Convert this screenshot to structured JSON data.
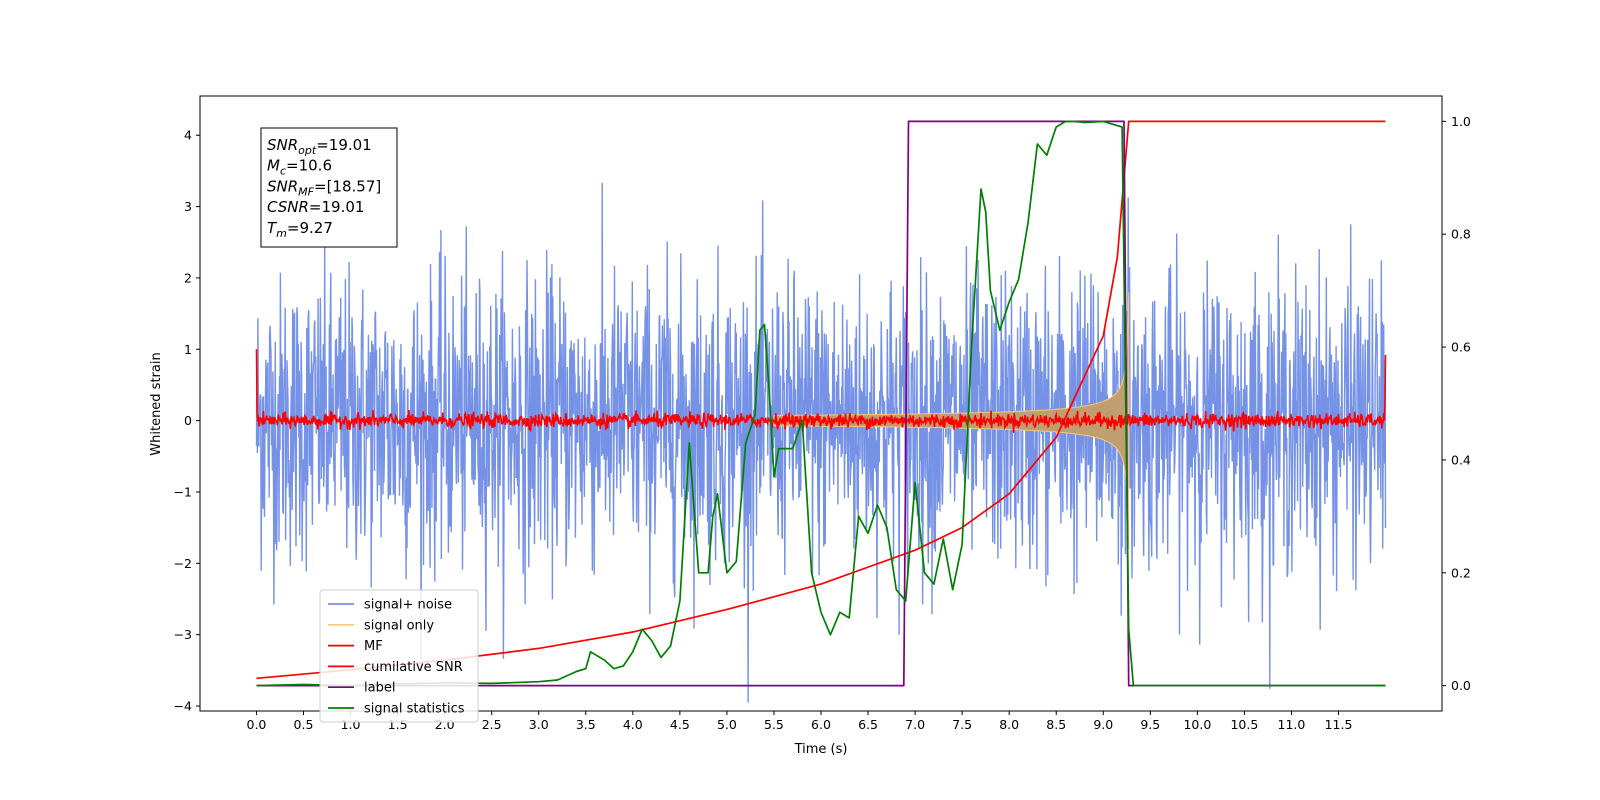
{
  "chart_data": {
    "type": "line",
    "xlabel": "Time (s)",
    "ylabel": "Whitened strain",
    "xlim": [
      -0.6,
      12.6
    ],
    "ylim": [
      -4.07,
      4.55
    ],
    "y2lim": [
      -0.045,
      1.045
    ],
    "grid": false,
    "legend_position": "lower-left",
    "x_ticks": [
      "0.0",
      "0.5",
      "1.0",
      "1.5",
      "2.0",
      "2.5",
      "3.0",
      "3.5",
      "4.0",
      "4.5",
      "5.0",
      "5.5",
      "6.0",
      "6.5",
      "7.0",
      "7.5",
      "8.0",
      "8.5",
      "9.0",
      "9.5",
      "10.0",
      "10.5",
      "11.0",
      "11.5"
    ],
    "y_ticks": [
      "−4",
      "−3",
      "−2",
      "−1",
      "0",
      "1",
      "2",
      "3",
      "4"
    ],
    "y2_ticks": [
      "0.0",
      "0.2",
      "0.4",
      "0.6",
      "0.8",
      "1.0"
    ],
    "info_box": [
      {
        "base": "SNR",
        "sub": "opt",
        "value": "=19.01"
      },
      {
        "base": "M",
        "sub": "c",
        "value": "=10.6"
      },
      {
        "base": "SNR",
        "sub": "MF",
        "value": "=[18.57]"
      },
      {
        "base": "CSNR",
        "sub": "",
        "value": "=19.01"
      },
      {
        "base": "T",
        "sub": "m",
        "value": "=9.27"
      }
    ],
    "series": [
      {
        "name": "signal+ noise",
        "color": "#7592e6",
        "axis": "left",
        "noise_sigma": 1.0,
        "x_range": [
          0.0,
          12.0
        ]
      },
      {
        "name": "signal only",
        "color": "#f5c97a",
        "axis": "left",
        "chirp_end": 9.27
      },
      {
        "name": "MF",
        "color": "#ff0000",
        "axis": "left",
        "noise_sigma": 0.05
      },
      {
        "name": "cumilative SNR",
        "color": "#ff0000",
        "axis": "right",
        "points": [
          [
            0.0,
            0.013
          ],
          [
            1.0,
            0.028
          ],
          [
            2.0,
            0.045
          ],
          [
            3.0,
            0.066
          ],
          [
            4.0,
            0.095
          ],
          [
            5.0,
            0.135
          ],
          [
            6.0,
            0.18
          ],
          [
            7.0,
            0.24
          ],
          [
            7.5,
            0.28
          ],
          [
            8.0,
            0.34
          ],
          [
            8.5,
            0.44
          ],
          [
            9.0,
            0.62
          ],
          [
            9.15,
            0.76
          ],
          [
            9.27,
            1.0
          ],
          [
            12.0,
            1.0
          ]
        ]
      },
      {
        "name": "label",
        "color": "#800080",
        "axis": "right",
        "points": [
          [
            0.0,
            0.0
          ],
          [
            6.88,
            0.0
          ],
          [
            6.93,
            1.0
          ],
          [
            9.22,
            1.0
          ],
          [
            9.27,
            0.0
          ],
          [
            12.0,
            0.0
          ]
        ]
      },
      {
        "name": "signal statistics",
        "color": "#008000",
        "axis": "right",
        "points": [
          [
            0.0,
            0.0
          ],
          [
            0.5,
            0.002
          ],
          [
            1.0,
            0.0
          ],
          [
            1.5,
            0.003
          ],
          [
            2.0,
            0.005
          ],
          [
            2.5,
            0.004
          ],
          [
            3.0,
            0.007
          ],
          [
            3.2,
            0.01
          ],
          [
            3.4,
            0.025
          ],
          [
            3.5,
            0.03
          ],
          [
            3.55,
            0.06
          ],
          [
            3.7,
            0.045
          ],
          [
            3.8,
            0.03
          ],
          [
            3.9,
            0.035
          ],
          [
            4.0,
            0.06
          ],
          [
            4.1,
            0.1
          ],
          [
            4.2,
            0.08
          ],
          [
            4.3,
            0.05
          ],
          [
            4.4,
            0.07
          ],
          [
            4.5,
            0.15
          ],
          [
            4.6,
            0.43
          ],
          [
            4.7,
            0.2
          ],
          [
            4.8,
            0.2
          ],
          [
            4.85,
            0.3
          ],
          [
            4.9,
            0.34
          ],
          [
            5.0,
            0.2
          ],
          [
            5.1,
            0.22
          ],
          [
            5.2,
            0.43
          ],
          [
            5.3,
            0.48
          ],
          [
            5.35,
            0.63
          ],
          [
            5.4,
            0.64
          ],
          [
            5.45,
            0.52
          ],
          [
            5.5,
            0.37
          ],
          [
            5.55,
            0.42
          ],
          [
            5.7,
            0.42
          ],
          [
            5.8,
            0.47
          ],
          [
            5.9,
            0.2
          ],
          [
            6.0,
            0.13
          ],
          [
            6.1,
            0.09
          ],
          [
            6.2,
            0.13
          ],
          [
            6.3,
            0.12
          ],
          [
            6.4,
            0.3
          ],
          [
            6.5,
            0.27
          ],
          [
            6.6,
            0.32
          ],
          [
            6.7,
            0.28
          ],
          [
            6.8,
            0.17
          ],
          [
            6.9,
            0.15
          ],
          [
            7.0,
            0.36
          ],
          [
            7.1,
            0.2
          ],
          [
            7.2,
            0.18
          ],
          [
            7.3,
            0.26
          ],
          [
            7.4,
            0.17
          ],
          [
            7.5,
            0.25
          ],
          [
            7.6,
            0.6
          ],
          [
            7.7,
            0.88
          ],
          [
            7.75,
            0.84
          ],
          [
            7.8,
            0.7
          ],
          [
            7.9,
            0.63
          ],
          [
            8.0,
            0.68
          ],
          [
            8.1,
            0.72
          ],
          [
            8.2,
            0.82
          ],
          [
            8.3,
            0.96
          ],
          [
            8.4,
            0.94
          ],
          [
            8.5,
            0.99
          ],
          [
            8.6,
            1.0
          ],
          [
            8.7,
            1.0
          ],
          [
            8.8,
            0.998
          ],
          [
            9.0,
            1.0
          ],
          [
            9.2,
            0.99
          ],
          [
            9.27,
            0.1
          ],
          [
            9.32,
            0.0
          ],
          [
            12.0,
            0.0
          ]
        ]
      }
    ]
  }
}
